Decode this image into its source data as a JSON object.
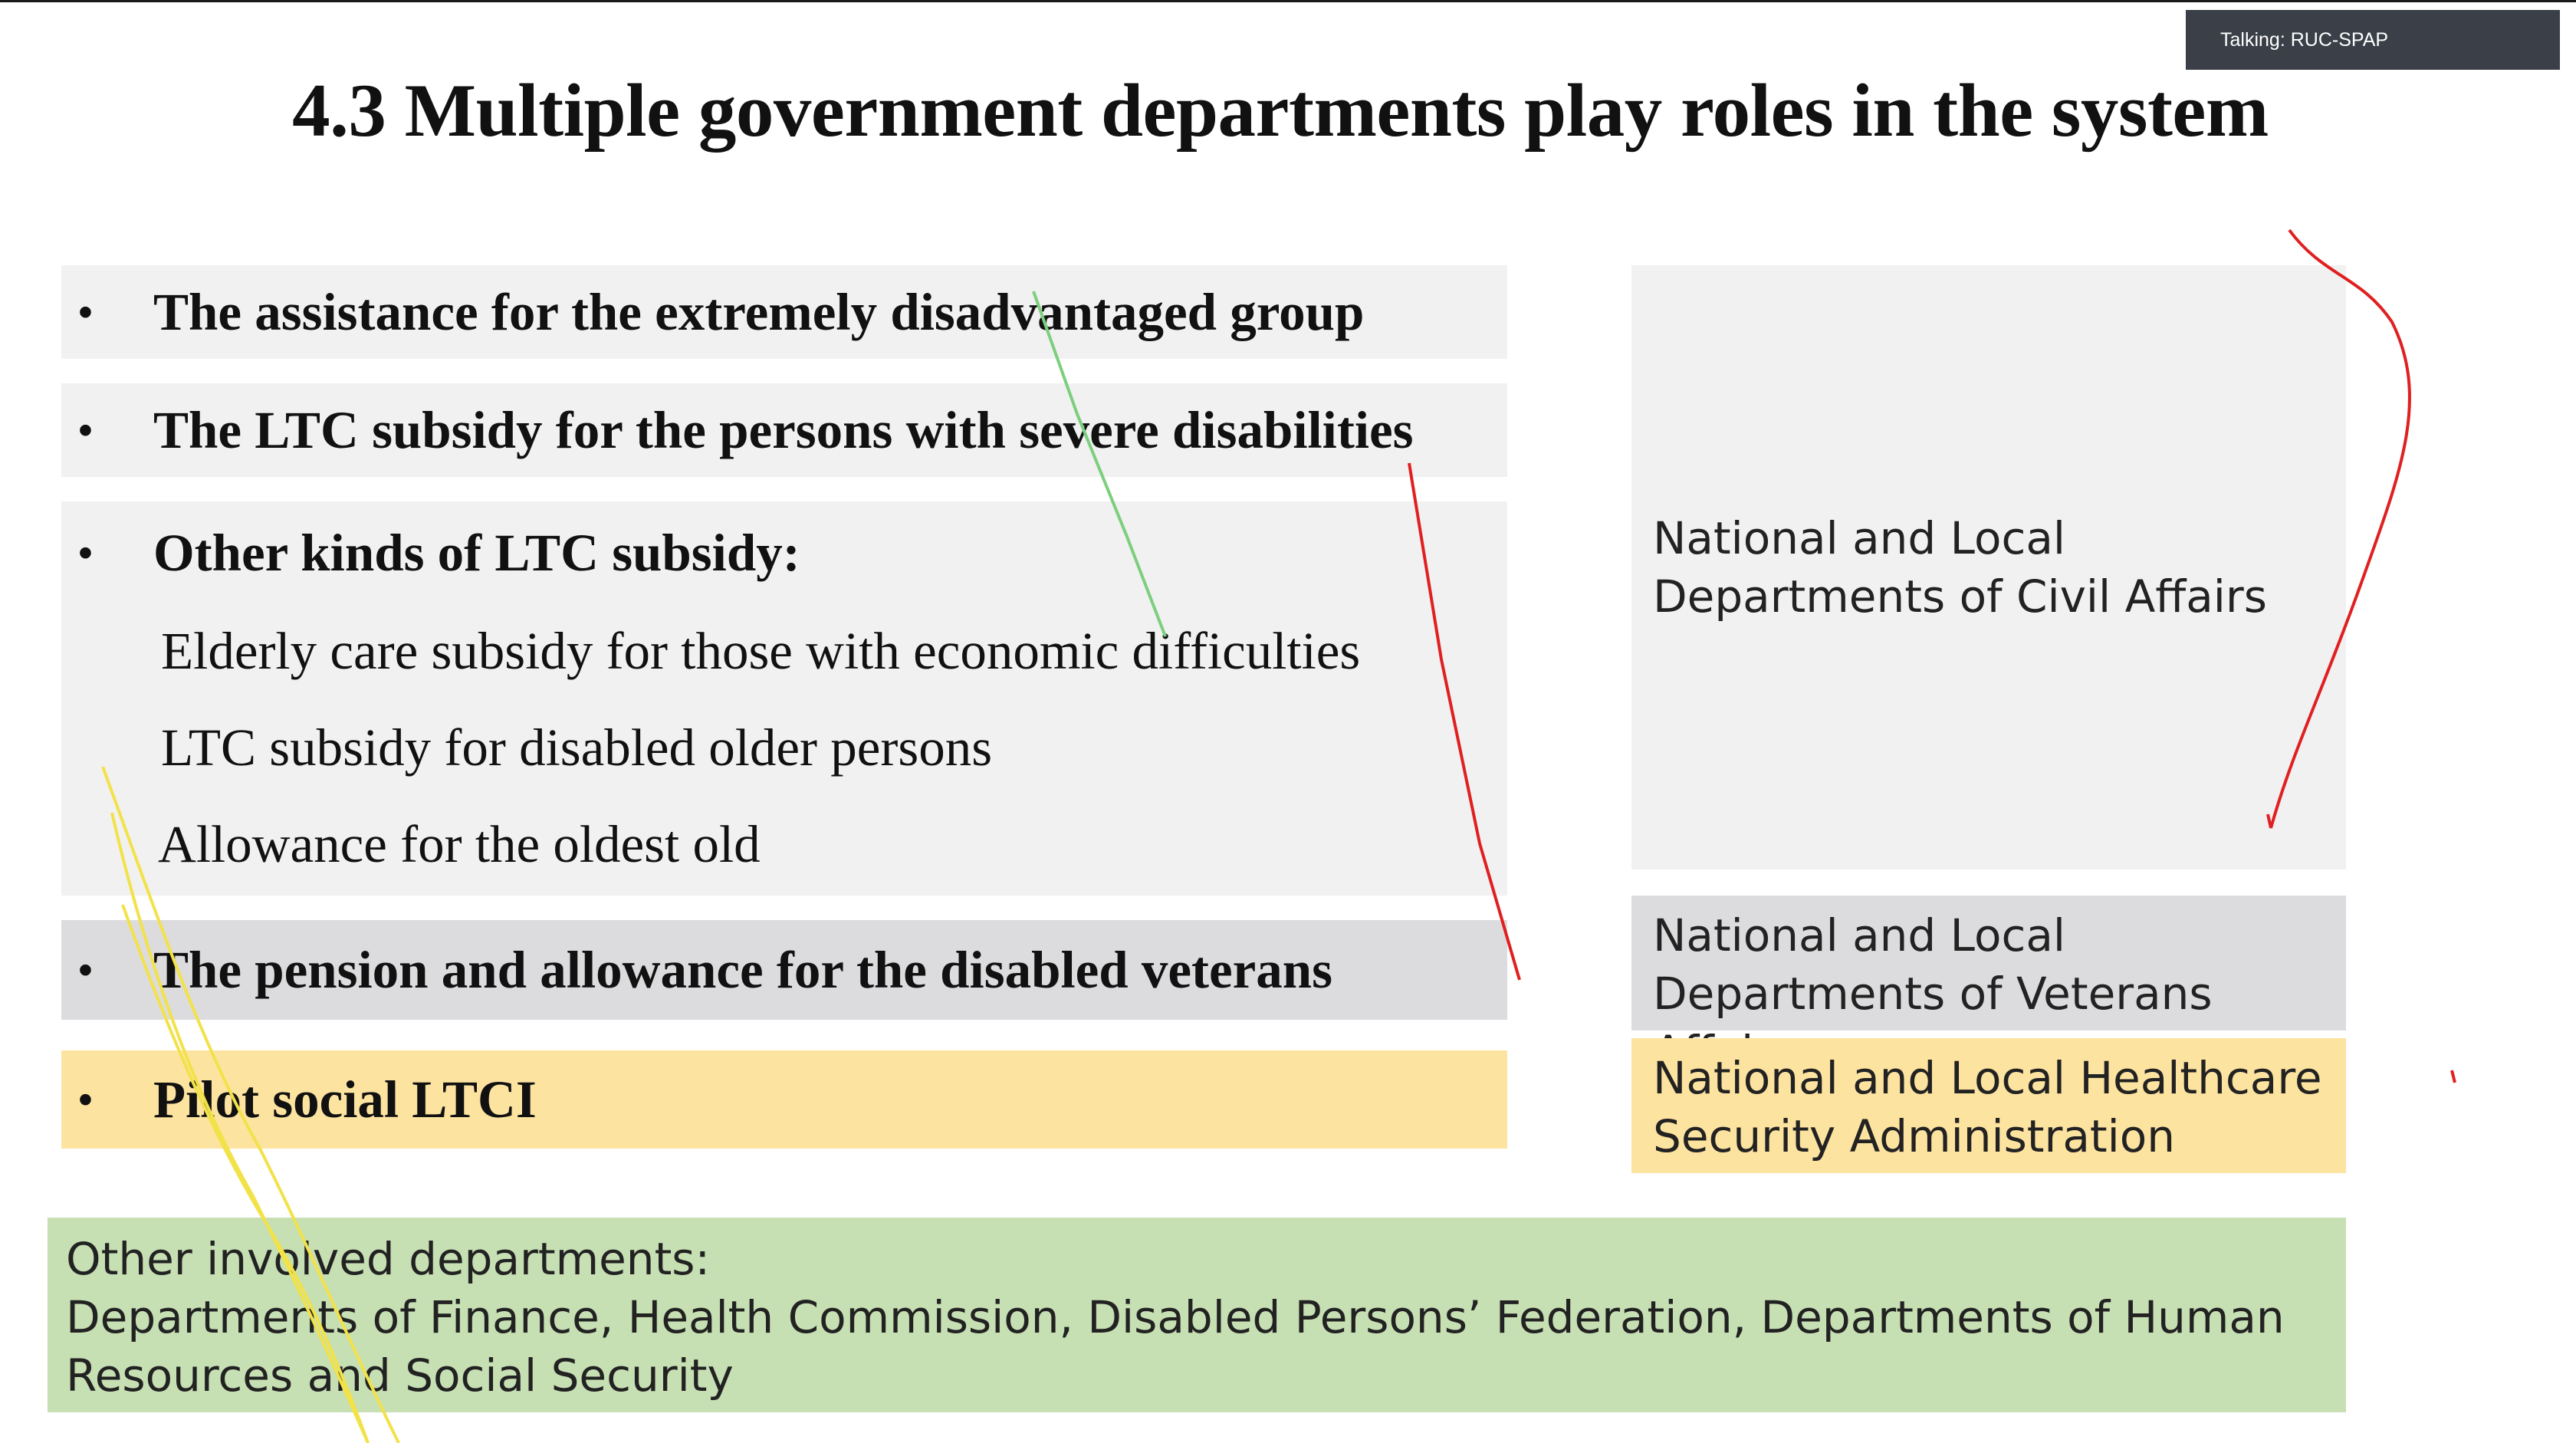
{
  "meeting": {
    "talking_label": "Talking: RUC-SPAP"
  },
  "slide": {
    "title": "4.3 Multiple government departments play roles in the system",
    "bullets": [
      {
        "bullet": "•",
        "text": "The assistance for the extremely disadvantaged group"
      },
      {
        "bullet": "•",
        "text": "The LTC subsidy for the persons with severe disabilities"
      },
      {
        "bullet": "•",
        "text": "Other kinds of LTC subsidy:"
      },
      {
        "bullet": "•",
        "text": "The pension and allowance for the disabled veterans"
      },
      {
        "bullet": "•",
        "text": "Pilot social LTCI"
      }
    ],
    "subsidy_items": [
      "Elderly care subsidy for those with economic difficulties",
      "LTC subsidy for disabled older persons",
      "Allowance for the oldest old"
    ],
    "departments": {
      "civil_affairs": [
        "National and Local",
        "Departments of Civil Affairs"
      ],
      "veterans_affairs": [
        "National and Local",
        "Departments of Veterans Affairs"
      ],
      "healthcare_security": [
        "National and Local Healthcare",
        "Security Administration"
      ]
    },
    "other_departments": {
      "heading": "Other involved departments:",
      "line1": "Departments of Finance, Health Commission, Disabled Persons’ Federation, Departments of Human",
      "line2": "Resources and Social Security"
    }
  },
  "colors": {
    "gray_box": "#f1f1f2",
    "veterans_box": "#dcdcde",
    "highlight_yellow": "#fde3a0",
    "highlight_green": "#c6dfb3",
    "annotation_red": "#e02020",
    "annotation_green": "#7ccf7c",
    "annotation_yellow": "#f2e24a"
  }
}
